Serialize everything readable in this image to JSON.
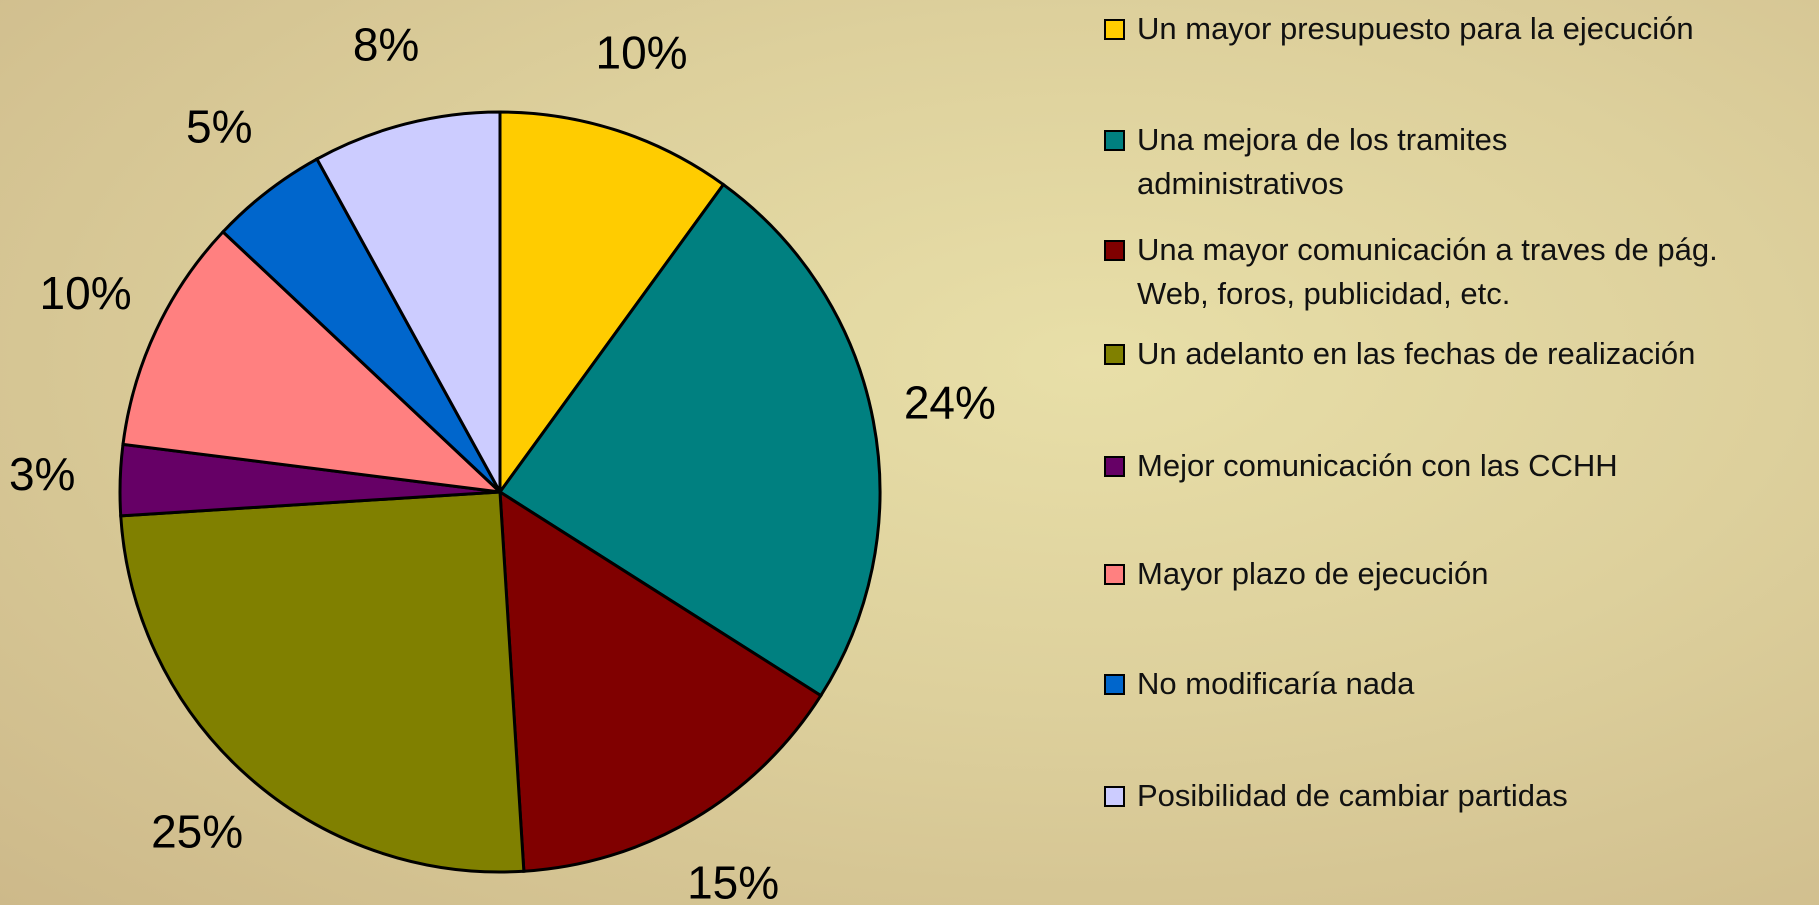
{
  "chart_data": {
    "type": "pie",
    "categories": [
      "Un mayor presupuesto para la ejecución",
      "Una mejora de los tramites administrativos",
      "Una mayor comunicación a traves de pág. Web, foros, publicidad, etc.",
      "Un adelanto en las fechas de realización",
      "Mejor comunicación con las CCHH",
      "Mayor plazo de ejecución",
      "No modificaría nada",
      "Posibilidad de cambiar partidas"
    ],
    "values": [
      10,
      24,
      15,
      25,
      3,
      10,
      5,
      8
    ],
    "value_labels": [
      "10%",
      "24%",
      "15%",
      "25%",
      "3%",
      "10%",
      "5%",
      "8%"
    ],
    "colors": [
      "#FFCC00",
      "#008080",
      "#800000",
      "#808000",
      "#660066",
      "#FF8080",
      "#0066CC",
      "#CCCCFF"
    ],
    "legend": "right"
  }
}
